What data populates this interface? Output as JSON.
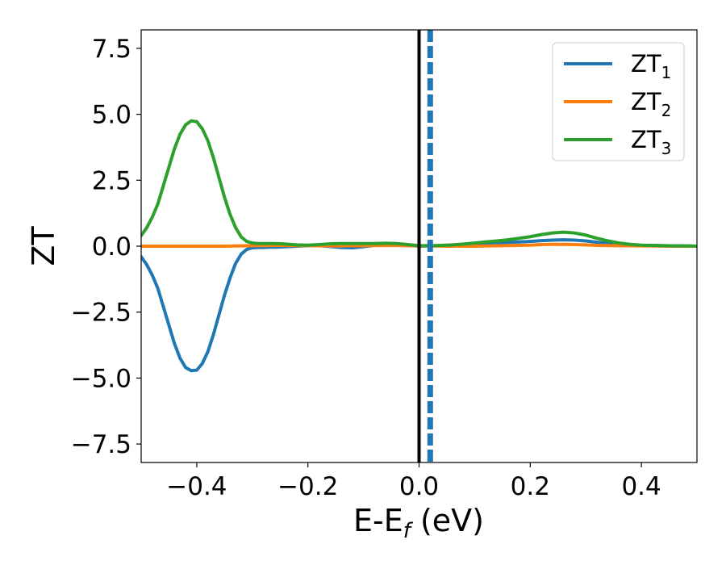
{
  "chart_data": {
    "type": "line",
    "xlabel": "E-E",
    "xlabel_sub": "f",
    "xlabel_unit": " (eV)",
    "ylabel": "ZT",
    "xlim": [
      -0.5,
      0.5
    ],
    "ylim": [
      -8.2,
      8.2
    ],
    "xticks": [
      -0.4,
      -0.2,
      0.0,
      0.2,
      0.4
    ],
    "xtick_labels": [
      "−0.4",
      "−0.2",
      "0.0",
      "0.2",
      "0.4"
    ],
    "yticks": [
      7.5,
      5.0,
      2.5,
      0.0,
      -2.5,
      -5.0,
      -7.5
    ],
    "ytick_labels": [
      "7.5",
      "5.0",
      "2.5",
      "0.0",
      "−2.5",
      "−5.0",
      "−7.5"
    ],
    "grid": false,
    "legend_position": "top-right",
    "vlines": [
      {
        "x": 0.0,
        "color": "#000000",
        "style": "solid"
      },
      {
        "x": 0.02,
        "color": "#1f77b4",
        "style": "dashed"
      }
    ],
    "series": [
      {
        "name": "ZT",
        "name_sub": "1",
        "color": "#1f77b4",
        "x": [
          -0.5,
          -0.49,
          -0.48,
          -0.47,
          -0.46,
          -0.45,
          -0.44,
          -0.43,
          -0.42,
          -0.41,
          -0.4,
          -0.39,
          -0.38,
          -0.37,
          -0.36,
          -0.35,
          -0.34,
          -0.33,
          -0.32,
          -0.31,
          -0.3,
          -0.29,
          -0.28,
          -0.27,
          -0.26,
          -0.25,
          -0.24,
          -0.22,
          -0.2,
          -0.18,
          -0.16,
          -0.14,
          -0.12,
          -0.1,
          -0.08,
          -0.06,
          -0.04,
          -0.02,
          0.0,
          0.02,
          0.04,
          0.06,
          0.08,
          0.1,
          0.12,
          0.14,
          0.16,
          0.18,
          0.2,
          0.22,
          0.24,
          0.26,
          0.28,
          0.3,
          0.32,
          0.34,
          0.36,
          0.38,
          0.4,
          0.42,
          0.44,
          0.46,
          0.48,
          0.5
        ],
        "y": [
          -0.4,
          -0.7,
          -1.1,
          -1.6,
          -2.3,
          -3.0,
          -3.7,
          -4.25,
          -4.6,
          -4.72,
          -4.7,
          -4.45,
          -4.0,
          -3.35,
          -2.6,
          -1.85,
          -1.2,
          -0.65,
          -0.3,
          -0.12,
          -0.06,
          -0.05,
          -0.05,
          -0.04,
          -0.04,
          -0.03,
          -0.02,
          0.0,
          0.02,
          0.02,
          -0.01,
          -0.05,
          -0.06,
          -0.02,
          0.03,
          0.06,
          0.06,
          0.03,
          0.0,
          0.01,
          0.02,
          0.03,
          0.05,
          0.08,
          0.1,
          0.12,
          0.14,
          0.16,
          0.18,
          0.21,
          0.23,
          0.24,
          0.23,
          0.2,
          0.15,
          0.1,
          0.06,
          0.04,
          0.03,
          0.02,
          0.02,
          0.01,
          0.01,
          0.0
        ]
      },
      {
        "name": "ZT",
        "name_sub": "2",
        "color": "#ff7f0e",
        "x": [
          -0.5,
          -0.45,
          -0.4,
          -0.35,
          -0.3,
          -0.25,
          -0.2,
          -0.15,
          -0.1,
          -0.05,
          0.0,
          0.05,
          0.1,
          0.15,
          0.2,
          0.22,
          0.24,
          0.26,
          0.28,
          0.3,
          0.32,
          0.35,
          0.4,
          0.45,
          0.5
        ],
        "y": [
          0.0,
          0.0,
          0.0,
          0.0,
          0.02,
          0.03,
          0.02,
          0.01,
          0.02,
          0.03,
          0.01,
          0.0,
          0.0,
          0.02,
          0.04,
          0.06,
          0.07,
          0.07,
          0.06,
          0.05,
          0.03,
          0.02,
          0.01,
          0.0,
          0.0
        ]
      },
      {
        "name": "ZT",
        "name_sub": "3",
        "color": "#2ca02c",
        "x": [
          -0.5,
          -0.49,
          -0.48,
          -0.47,
          -0.46,
          -0.45,
          -0.44,
          -0.43,
          -0.42,
          -0.41,
          -0.4,
          -0.39,
          -0.38,
          -0.37,
          -0.36,
          -0.35,
          -0.34,
          -0.33,
          -0.32,
          -0.31,
          -0.3,
          -0.29,
          -0.28,
          -0.27,
          -0.26,
          -0.25,
          -0.24,
          -0.22,
          -0.2,
          -0.18,
          -0.16,
          -0.14,
          -0.12,
          -0.1,
          -0.08,
          -0.06,
          -0.04,
          -0.02,
          0.0,
          0.02,
          0.04,
          0.06,
          0.08,
          0.1,
          0.12,
          0.14,
          0.16,
          0.18,
          0.2,
          0.22,
          0.24,
          0.26,
          0.28,
          0.3,
          0.32,
          0.34,
          0.36,
          0.38,
          0.4,
          0.42,
          0.44,
          0.46,
          0.48,
          0.5
        ],
        "y": [
          0.4,
          0.7,
          1.1,
          1.6,
          2.3,
          3.0,
          3.7,
          4.25,
          4.6,
          4.75,
          4.72,
          4.45,
          4.0,
          3.35,
          2.6,
          1.85,
          1.2,
          0.7,
          0.35,
          0.18,
          0.12,
          0.1,
          0.1,
          0.1,
          0.1,
          0.09,
          0.08,
          0.05,
          0.04,
          0.06,
          0.09,
          0.1,
          0.1,
          0.1,
          0.1,
          0.11,
          0.1,
          0.06,
          0.02,
          0.02,
          0.03,
          0.05,
          0.08,
          0.12,
          0.16,
          0.2,
          0.24,
          0.3,
          0.36,
          0.44,
          0.5,
          0.53,
          0.5,
          0.42,
          0.3,
          0.2,
          0.12,
          0.07,
          0.04,
          0.03,
          0.02,
          0.01,
          0.01,
          0.0
        ]
      }
    ]
  }
}
